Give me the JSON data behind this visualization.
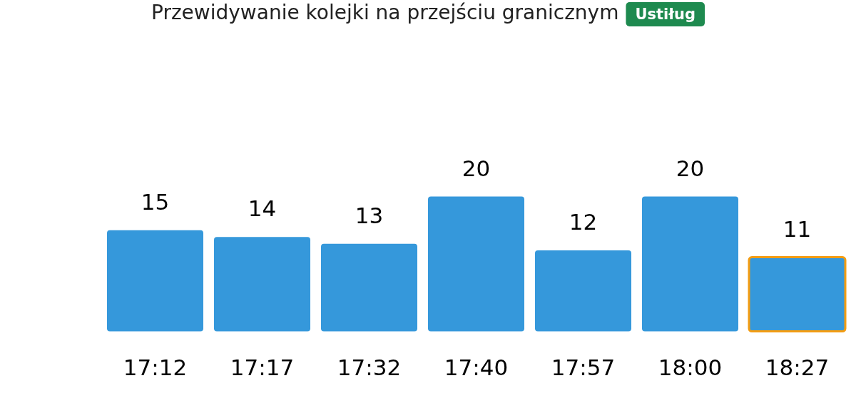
{
  "chart_data": {
    "type": "bar",
    "title": "Przewidywanie kolejki na przejściu granicznym",
    "subtitle": "Ustiług",
    "categories": [
      "17:12",
      "17:17",
      "17:32",
      "17:40",
      "17:57",
      "18:00",
      "18:27"
    ],
    "values": [
      15,
      14,
      13,
      20,
      12,
      20,
      11
    ],
    "color": "#3598db",
    "data_labels": true
  }
}
